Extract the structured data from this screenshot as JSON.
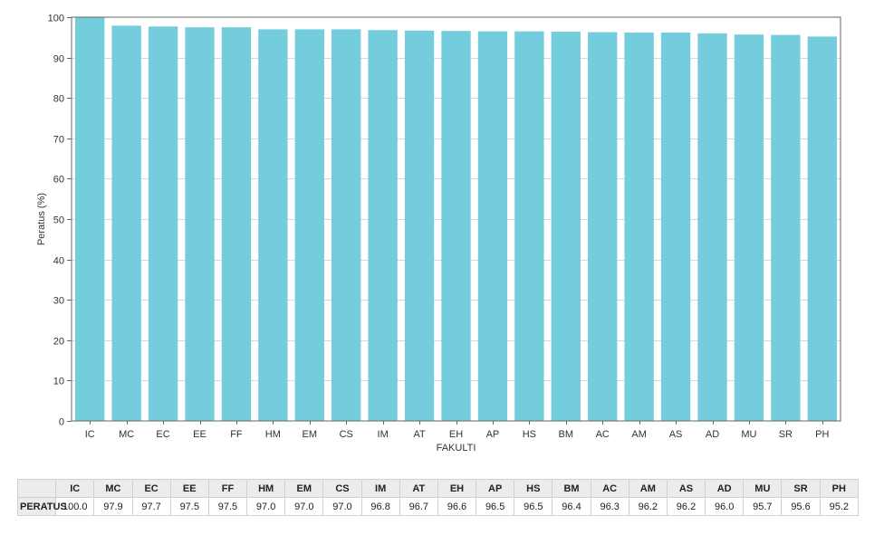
{
  "chart_data": {
    "type": "bar",
    "title": "",
    "xlabel": "FAKULTI",
    "ylabel": "Peratus (%)",
    "ylim": [
      0,
      100
    ],
    "yticks": [
      0,
      10,
      20,
      30,
      40,
      50,
      60,
      70,
      80,
      90,
      100
    ],
    "grid": true,
    "bar_color": "#74cddc",
    "categories": [
      "IC",
      "MC",
      "EC",
      "EE",
      "FF",
      "HM",
      "EM",
      "CS",
      "IM",
      "AT",
      "EH",
      "AP",
      "HS",
      "BM",
      "AC",
      "AM",
      "AS",
      "AD",
      "MU",
      "SR",
      "PH"
    ],
    "values": [
      100.0,
      97.9,
      97.7,
      97.5,
      97.5,
      97.0,
      97.0,
      97.0,
      96.8,
      96.7,
      96.6,
      96.5,
      96.5,
      96.4,
      96.3,
      96.2,
      96.2,
      96.0,
      95.7,
      95.6,
      95.2
    ]
  },
  "table": {
    "row_label": "PERATUS",
    "values": [
      "100.0",
      "97.9",
      "97.7",
      "97.5",
      "97.5",
      "97.0",
      "97.0",
      "97.0",
      "96.8",
      "96.7",
      "96.6",
      "96.5",
      "96.5",
      "96.4",
      "96.3",
      "96.2",
      "96.2",
      "96.0",
      "95.7",
      "95.6",
      "95.2"
    ]
  }
}
